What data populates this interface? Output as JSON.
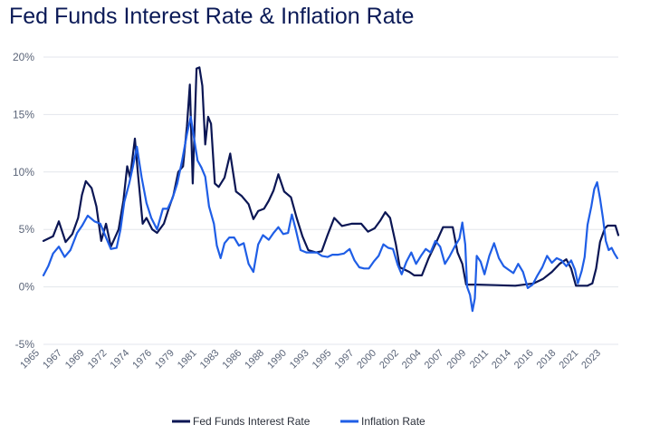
{
  "title": "Fed Funds Interest Rate & Inflation Rate",
  "chart_data": {
    "type": "line",
    "title": "Fed Funds Interest Rate & Inflation Rate",
    "xlabel": "",
    "ylabel": "",
    "xlim": [
      1965,
      2024.7
    ],
    "ylim": [
      -5,
      20
    ],
    "yticks": [
      -5,
      0,
      5,
      10,
      15,
      20
    ],
    "ytick_labels": [
      "-5%",
      "0%",
      "5%",
      "10%",
      "15%",
      "20%"
    ],
    "xtick_labels": [
      "1965",
      "1967",
      "1969",
      "1972",
      "1974",
      "1976",
      "1979",
      "1981",
      "1983",
      "1986",
      "1988",
      "1990",
      "1993",
      "1995",
      "1997",
      "2000",
      "2002",
      "2004",
      "2007",
      "2009",
      "2011",
      "2014",
      "2016",
      "2018",
      "2021",
      "2023"
    ],
    "grid": "horizontal",
    "legend_position": "bottom",
    "series": [
      {
        "name": "Fed Funds Interest Rate",
        "color": "#0b1654",
        "points": [
          [
            1965.0,
            4.0
          ],
          [
            1966.0,
            4.4
          ],
          [
            1966.6,
            5.7
          ],
          [
            1967.3,
            3.9
          ],
          [
            1968.0,
            4.6
          ],
          [
            1968.6,
            6.0
          ],
          [
            1969.0,
            8.0
          ],
          [
            1969.4,
            9.2
          ],
          [
            1970.0,
            8.6
          ],
          [
            1970.5,
            7.0
          ],
          [
            1971.0,
            4.0
          ],
          [
            1971.5,
            5.5
          ],
          [
            1972.0,
            3.5
          ],
          [
            1972.8,
            5.0
          ],
          [
            1973.3,
            7.5
          ],
          [
            1973.7,
            10.5
          ],
          [
            1974.0,
            9.5
          ],
          [
            1974.5,
            12.9
          ],
          [
            1974.8,
            10.0
          ],
          [
            1975.3,
            5.5
          ],
          [
            1975.7,
            6.0
          ],
          [
            1976.3,
            5.0
          ],
          [
            1976.8,
            4.7
          ],
          [
            1977.5,
            5.5
          ],
          [
            1978.0,
            6.8
          ],
          [
            1978.5,
            8.0
          ],
          [
            1979.0,
            10.0
          ],
          [
            1979.5,
            10.5
          ],
          [
            1979.9,
            14.0
          ],
          [
            1980.2,
            17.6
          ],
          [
            1980.5,
            9.0
          ],
          [
            1980.9,
            19.0
          ],
          [
            1981.2,
            19.1
          ],
          [
            1981.5,
            17.5
          ],
          [
            1981.8,
            12.4
          ],
          [
            1982.1,
            14.8
          ],
          [
            1982.4,
            14.2
          ],
          [
            1982.8,
            9.0
          ],
          [
            1983.2,
            8.7
          ],
          [
            1983.8,
            9.5
          ],
          [
            1984.4,
            11.6
          ],
          [
            1985.0,
            8.3
          ],
          [
            1985.6,
            7.9
          ],
          [
            1986.3,
            7.2
          ],
          [
            1986.8,
            5.9
          ],
          [
            1987.3,
            6.6
          ],
          [
            1987.9,
            6.8
          ],
          [
            1988.4,
            7.5
          ],
          [
            1988.9,
            8.4
          ],
          [
            1989.4,
            9.8
          ],
          [
            1990.0,
            8.3
          ],
          [
            1990.7,
            7.8
          ],
          [
            1991.3,
            6.0
          ],
          [
            1991.9,
            4.4
          ],
          [
            1992.5,
            3.2
          ],
          [
            1993.3,
            3.0
          ],
          [
            1993.9,
            3.1
          ],
          [
            1994.5,
            4.5
          ],
          [
            1995.2,
            6.0
          ],
          [
            1996.0,
            5.3
          ],
          [
            1997.0,
            5.5
          ],
          [
            1998.0,
            5.5
          ],
          [
            1998.7,
            4.8
          ],
          [
            1999.4,
            5.1
          ],
          [
            2000.0,
            5.8
          ],
          [
            2000.5,
            6.5
          ],
          [
            2001.0,
            6.0
          ],
          [
            2001.6,
            3.7
          ],
          [
            2002.0,
            1.7
          ],
          [
            2003.0,
            1.3
          ],
          [
            2003.5,
            1.0
          ],
          [
            2004.3,
            1.0
          ],
          [
            2005.0,
            2.5
          ],
          [
            2005.8,
            3.9
          ],
          [
            2006.5,
            5.2
          ],
          [
            2007.5,
            5.2
          ],
          [
            2008.0,
            3.0
          ],
          [
            2008.5,
            2.0
          ],
          [
            2008.9,
            0.2
          ],
          [
            2010.0,
            0.2
          ],
          [
            2012.0,
            0.15
          ],
          [
            2014.0,
            0.1
          ],
          [
            2015.9,
            0.3
          ],
          [
            2016.9,
            0.7
          ],
          [
            2017.8,
            1.3
          ],
          [
            2018.6,
            2.0
          ],
          [
            2019.3,
            2.4
          ],
          [
            2019.8,
            1.6
          ],
          [
            2020.3,
            0.1
          ],
          [
            2021.5,
            0.1
          ],
          [
            2022.0,
            0.3
          ],
          [
            2022.4,
            1.6
          ],
          [
            2022.8,
            3.9
          ],
          [
            2023.3,
            5.1
          ],
          [
            2023.6,
            5.33
          ],
          [
            2024.4,
            5.33
          ],
          [
            2024.7,
            4.5
          ],
          [
            2025.0,
            4.33
          ]
        ]
      },
      {
        "name": "Inflation Rate",
        "color": "#1f5ee6",
        "points": [
          [
            1965.0,
            1.0
          ],
          [
            1965.5,
            1.8
          ],
          [
            1966.0,
            2.9
          ],
          [
            1966.6,
            3.5
          ],
          [
            1967.2,
            2.6
          ],
          [
            1967.8,
            3.2
          ],
          [
            1968.5,
            4.7
          ],
          [
            1969.0,
            5.3
          ],
          [
            1969.6,
            6.2
          ],
          [
            1970.3,
            5.7
          ],
          [
            1970.9,
            5.5
          ],
          [
            1971.5,
            4.3
          ],
          [
            1972.0,
            3.3
          ],
          [
            1972.6,
            3.4
          ],
          [
            1973.0,
            5.0
          ],
          [
            1973.4,
            7.4
          ],
          [
            1973.9,
            9.0
          ],
          [
            1974.3,
            10.5
          ],
          [
            1974.7,
            12.2
          ],
          [
            1975.2,
            9.5
          ],
          [
            1975.7,
            7.3
          ],
          [
            1976.2,
            6.0
          ],
          [
            1976.8,
            5.0
          ],
          [
            1977.4,
            6.8
          ],
          [
            1977.9,
            6.8
          ],
          [
            1978.4,
            7.7
          ],
          [
            1978.9,
            9.0
          ],
          [
            1979.4,
            11.0
          ],
          [
            1979.9,
            13.3
          ],
          [
            1980.3,
            14.8
          ],
          [
            1980.7,
            12.6
          ],
          [
            1981.0,
            11.0
          ],
          [
            1981.4,
            10.4
          ],
          [
            1981.8,
            9.6
          ],
          [
            1982.2,
            7.0
          ],
          [
            1982.7,
            5.5
          ],
          [
            1983.0,
            3.6
          ],
          [
            1983.4,
            2.5
          ],
          [
            1983.8,
            3.8
          ],
          [
            1984.3,
            4.3
          ],
          [
            1984.8,
            4.3
          ],
          [
            1985.3,
            3.6
          ],
          [
            1985.8,
            3.8
          ],
          [
            1986.3,
            2.0
          ],
          [
            1986.8,
            1.3
          ],
          [
            1987.3,
            3.7
          ],
          [
            1987.8,
            4.5
          ],
          [
            1988.4,
            4.1
          ],
          [
            1988.9,
            4.7
          ],
          [
            1989.4,
            5.2
          ],
          [
            1989.9,
            4.6
          ],
          [
            1990.4,
            4.7
          ],
          [
            1990.8,
            6.3
          ],
          [
            1991.2,
            5.0
          ],
          [
            1991.7,
            3.2
          ],
          [
            1992.3,
            3.0
          ],
          [
            1992.8,
            3.0
          ],
          [
            1993.4,
            3.0
          ],
          [
            1993.9,
            2.7
          ],
          [
            1994.5,
            2.6
          ],
          [
            1995.0,
            2.8
          ],
          [
            1995.6,
            2.8
          ],
          [
            1996.2,
            2.9
          ],
          [
            1996.8,
            3.3
          ],
          [
            1997.3,
            2.3
          ],
          [
            1997.8,
            1.7
          ],
          [
            1998.3,
            1.6
          ],
          [
            1998.8,
            1.6
          ],
          [
            1999.3,
            2.2
          ],
          [
            1999.8,
            2.7
          ],
          [
            2000.3,
            3.7
          ],
          [
            2000.8,
            3.4
          ],
          [
            2001.3,
            3.3
          ],
          [
            2001.8,
            1.9
          ],
          [
            2002.2,
            1.1
          ],
          [
            2002.7,
            2.2
          ],
          [
            2003.2,
            3.0
          ],
          [
            2003.7,
            2.0
          ],
          [
            2004.2,
            2.7
          ],
          [
            2004.7,
            3.3
          ],
          [
            2005.2,
            3.0
          ],
          [
            2005.7,
            4.0
          ],
          [
            2006.2,
            3.5
          ],
          [
            2006.7,
            2.0
          ],
          [
            2007.2,
            2.7
          ],
          [
            2007.7,
            3.5
          ],
          [
            2008.2,
            4.2
          ],
          [
            2008.5,
            5.6
          ],
          [
            2008.8,
            3.7
          ],
          [
            2009.0,
            0.0
          ],
          [
            2009.3,
            -0.7
          ],
          [
            2009.55,
            -2.1
          ],
          [
            2009.8,
            -1.0
          ],
          [
            2010.0,
            2.7
          ],
          [
            2010.4,
            2.2
          ],
          [
            2010.8,
            1.1
          ],
          [
            2011.3,
            2.7
          ],
          [
            2011.8,
            3.8
          ],
          [
            2012.3,
            2.5
          ],
          [
            2012.8,
            1.8
          ],
          [
            2013.3,
            1.5
          ],
          [
            2013.8,
            1.2
          ],
          [
            2014.3,
            2.0
          ],
          [
            2014.8,
            1.3
          ],
          [
            2015.3,
            -0.1
          ],
          [
            2015.8,
            0.2
          ],
          [
            2016.3,
            1.0
          ],
          [
            2016.8,
            1.7
          ],
          [
            2017.3,
            2.7
          ],
          [
            2017.8,
            2.1
          ],
          [
            2018.3,
            2.5
          ],
          [
            2018.8,
            2.3
          ],
          [
            2019.3,
            1.8
          ],
          [
            2019.8,
            2.3
          ],
          [
            2020.2,
            1.5
          ],
          [
            2020.5,
            0.3
          ],
          [
            2020.9,
            1.4
          ],
          [
            2021.2,
            2.6
          ],
          [
            2021.5,
            5.4
          ],
          [
            2021.9,
            7.0
          ],
          [
            2022.2,
            8.5
          ],
          [
            2022.5,
            9.1
          ],
          [
            2022.8,
            7.7
          ],
          [
            2023.1,
            6.0
          ],
          [
            2023.4,
            4.0
          ],
          [
            2023.7,
            3.2
          ],
          [
            2024.0,
            3.4
          ],
          [
            2024.3,
            2.9
          ],
          [
            2024.6,
            2.5
          ],
          [
            2025.0,
            2.8
          ]
        ]
      }
    ]
  }
}
